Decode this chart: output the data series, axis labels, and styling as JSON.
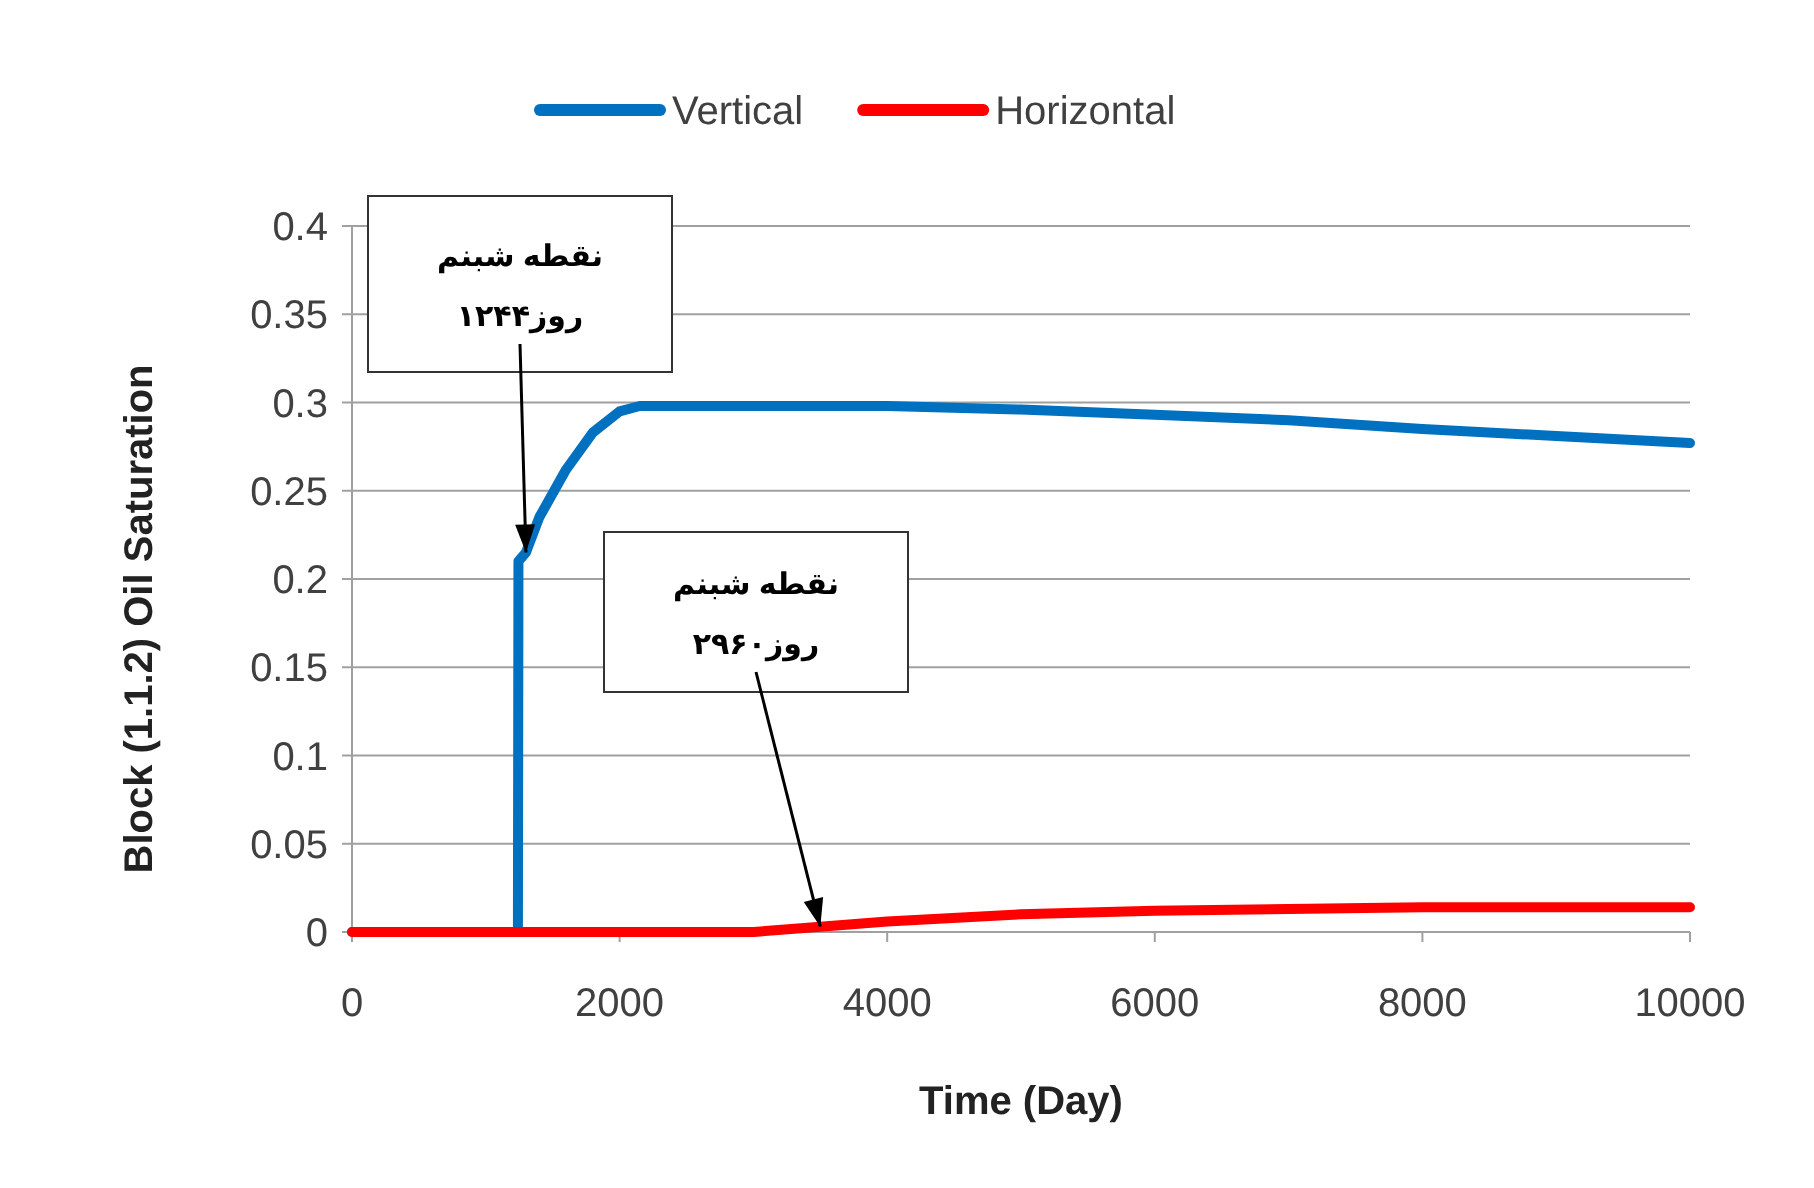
{
  "chart_data": {
    "type": "line",
    "xlabel": "Time (Day)",
    "ylabel": "Block (1.1.2) Oil Saturation",
    "xlim": [
      0,
      10000
    ],
    "xticks": [
      0,
      2000,
      4000,
      6000,
      8000,
      10000
    ],
    "ylim": [
      0,
      0.4
    ],
    "yticks": [
      0,
      0.05,
      0.1,
      0.15,
      0.2,
      0.25,
      0.3,
      0.35,
      0.4
    ],
    "grid": "y",
    "legend": "top",
    "marker": "none",
    "line_style": "solid",
    "series": [
      {
        "name": "Vertical",
        "color": "#0070c0",
        "x": [
          0,
          1240,
          1244,
          1300,
          1400,
          1600,
          1800,
          2000,
          2150,
          3000,
          4000,
          5000,
          6000,
          7000,
          8000,
          9000,
          10000
        ],
        "values": [
          0,
          0,
          0.21,
          0.215,
          0.235,
          0.262,
          0.283,
          0.295,
          0.298,
          0.298,
          0.298,
          0.296,
          0.293,
          0.29,
          0.285,
          0.281,
          0.277
        ]
      },
      {
        "name": "Horizontal",
        "color": "#ff0000",
        "x": [
          0,
          3000,
          3500,
          4000,
          5000,
          6000,
          7000,
          8000,
          10000
        ],
        "values": [
          0,
          0,
          0.003,
          0.006,
          0.01,
          0.012,
          0.013,
          0.014,
          0.014
        ]
      }
    ],
    "annotations": [
      {
        "text": "نقطه شبنم\nروز۱۲۴۴",
        "x": 1300,
        "y": 0.215
      },
      {
        "text": "نقطه شبنم\nروز۲۹۶۰",
        "x": 3500,
        "y": 0.003
      }
    ]
  }
}
